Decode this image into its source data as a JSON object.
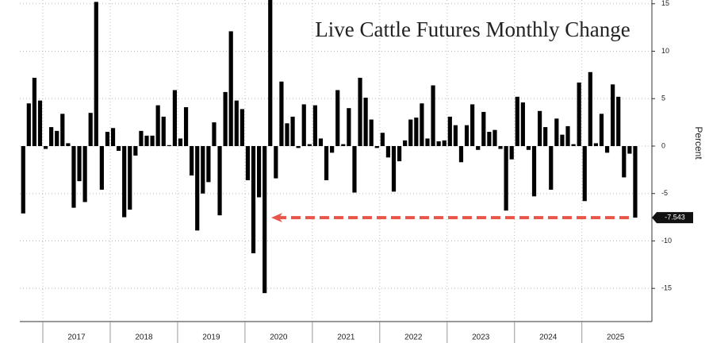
{
  "chart_data": {
    "type": "bar",
    "title": "Live Cattle Futures Monthly Change",
    "y_label": "Percent",
    "color": "#000000",
    "annotation_color": "#e8564a",
    "grid": true,
    "ylim": [
      -18.5,
      15.4
    ],
    "yticks": [
      15,
      10,
      5,
      0,
      -5,
      -10,
      -15
    ],
    "year_labels": [
      "2017",
      "2018",
      "2019",
      "2020",
      "2021",
      "2022",
      "2023",
      "2024",
      "2025"
    ],
    "values": [
      -7.1,
      4.5,
      7.2,
      4.8,
      -0.3,
      2.0,
      1.6,
      3.4,
      0.3,
      -6.5,
      -3.7,
      -5.9,
      3.5,
      15.2,
      -4.6,
      1.5,
      1.9,
      -0.5,
      -7.5,
      -6.7,
      -1.0,
      1.6,
      1.1,
      1.1,
      4.3,
      3.1,
      0.1,
      5.9,
      0.8,
      4.1,
      -3.1,
      -8.9,
      -5.0,
      -3.8,
      2.5,
      -7.3,
      5.7,
      12.1,
      4.8,
      3.9,
      -3.6,
      -11.3,
      -5.4,
      -15.5,
      17.0,
      -3.4,
      6.8,
      2.4,
      3.1,
      -0.2,
      4.4,
      0.2,
      4.3,
      0.8,
      -3.6,
      -0.7,
      5.9,
      0.2,
      4.0,
      -4.9,
      7.2,
      5.1,
      2.8,
      -0.2,
      1.4,
      -1.2,
      -4.8,
      -1.6,
      0.6,
      2.8,
      3.0,
      4.5,
      0.8,
      6.4,
      0.5,
      0.6,
      3.1,
      2.2,
      -1.7,
      2.2,
      4.4,
      -0.4,
      3.6,
      1.5,
      1.7,
      -0.3,
      -6.8,
      -1.4,
      5.2,
      4.6,
      -0.4,
      -5.3,
      3.7,
      2.0,
      -4.6,
      2.9,
      1.2,
      2.1,
      0.2,
      6.7,
      -5.8,
      7.8,
      0.3,
      3.4,
      -0.7,
      6.5,
      5.2,
      -3.3,
      -0.8,
      -7.543
    ],
    "value_labels": [
      null,
      null,
      null,
      null,
      null,
      null,
      null,
      null,
      null,
      null,
      null,
      null,
      null,
      null,
      null,
      null,
      null,
      null,
      null,
      null,
      null,
      null,
      null,
      null,
      null,
      null,
      null,
      null,
      null,
      null,
      null,
      null,
      null,
      null,
      null,
      null,
      null,
      null,
      null,
      null,
      null,
      null,
      null,
      null,
      null,
      null,
      null,
      null,
      null,
      null,
      null,
      null,
      null,
      null,
      null,
      null,
      null,
      null,
      null,
      null,
      null,
      null,
      null,
      null,
      null,
      null,
      null,
      null,
      null,
      null,
      null,
      null,
      null,
      null,
      null,
      null,
      null,
      null,
      null,
      null,
      null,
      null,
      null,
      null,
      null,
      null,
      null,
      null,
      null,
      null,
      null,
      null,
      null,
      null,
      null,
      null,
      null,
      null,
      null,
      null,
      null,
      null,
      null,
      null,
      null,
      null,
      null,
      null,
      null,
      "-7.543"
    ]
  }
}
